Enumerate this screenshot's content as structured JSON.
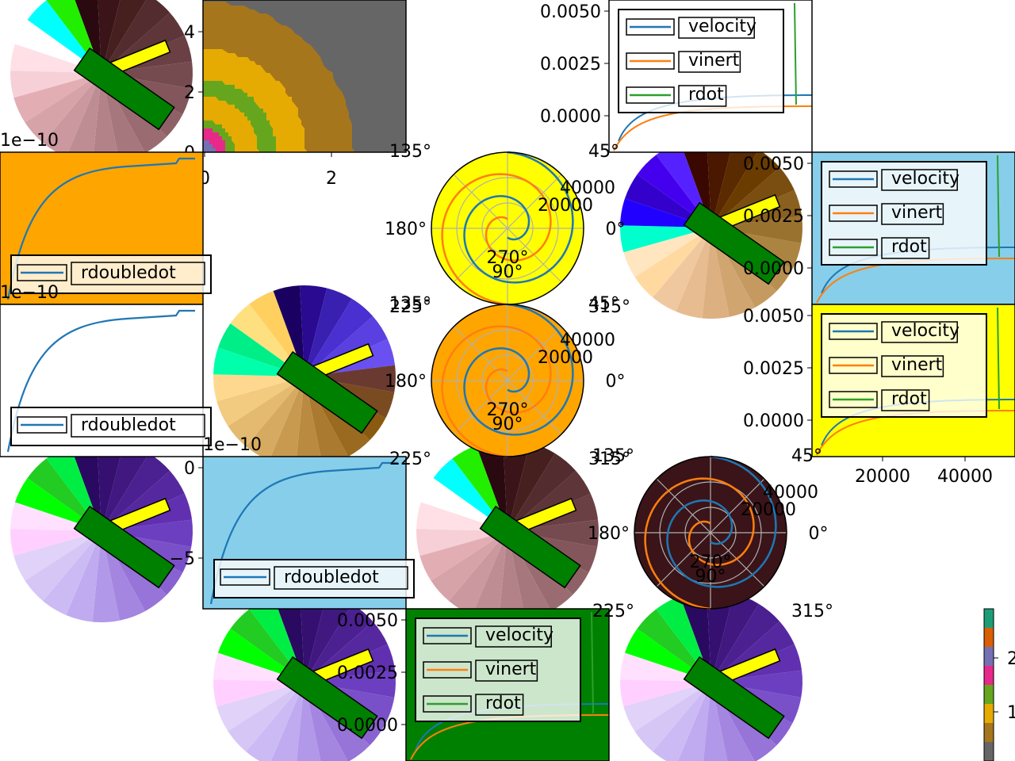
{
  "chart_data": [
    {
      "type": "line",
      "id": "legend-a",
      "series": [
        {
          "name": "velocity",
          "color": "#1f77b4"
        },
        {
          "name": "vinert",
          "color": "#ff7f0e"
        },
        {
          "name": "rdot",
          "color": "#2ca02c"
        }
      ],
      "yticks": [
        "0.0050",
        "0.0025",
        "0.0000"
      ],
      "ylim": [
        0.0,
        0.005
      ],
      "legend_placement": "top",
      "background": "#ffffff"
    },
    {
      "type": "line",
      "id": "legend-b",
      "series": [
        {
          "name": "velocity",
          "color": "#1f77b4"
        },
        {
          "name": "vinert",
          "color": "#ff7f0e"
        },
        {
          "name": "rdot",
          "color": "#2ca02c"
        }
      ],
      "yticks": [
        "0.0050",
        "0.0025",
        "0.0000"
      ],
      "background": "#87ceeb"
    },
    {
      "type": "line",
      "id": "legend-c",
      "series": [
        {
          "name": "velocity",
          "color": "#1f77b4"
        },
        {
          "name": "vinert",
          "color": "#ff7f0e"
        },
        {
          "name": "rdot",
          "color": "#2ca02c"
        }
      ],
      "yticks": [
        "0.0050",
        "0.0025",
        "0.0000"
      ],
      "xticks": [
        "20000",
        "40000"
      ],
      "background": "#ffff00"
    },
    {
      "type": "line",
      "id": "legend-d",
      "series": [
        {
          "name": "velocity",
          "color": "#1f77b4"
        },
        {
          "name": "vinert",
          "color": "#ff7f0e"
        },
        {
          "name": "rdot",
          "color": "#2ca02c"
        }
      ],
      "yticks": [
        "0.0050",
        "0.0025",
        "0.0000"
      ],
      "background": "#008000"
    },
    {
      "type": "line",
      "id": "rdd-a",
      "series": [
        {
          "name": "rdoubledot",
          "color": "#1f77b4"
        }
      ],
      "offset_text": "1e−10",
      "background": "#ffa500"
    },
    {
      "type": "line",
      "id": "rdd-b",
      "series": [
        {
          "name": "rdoubledot",
          "color": "#1f77b4"
        }
      ],
      "offset_text": "1e−10",
      "background": "#ffffff"
    },
    {
      "type": "line",
      "id": "rdd-c",
      "series": [
        {
          "name": "rdoubledot",
          "color": "#1f77b4"
        }
      ],
      "offset_text": "1e−10",
      "yticks": [
        "0",
        "−5"
      ],
      "background": "#87ceeb"
    },
    {
      "type": "line",
      "id": "polar-a",
      "polar": true,
      "angle_ticks": [
        "0°",
        "45°",
        "90°",
        "135°",
        "180°",
        "225°",
        "270°",
        "315°"
      ],
      "radial_ticks": [
        "20000",
        "40000"
      ],
      "background": "#ffff00"
    },
    {
      "type": "line",
      "id": "polar-b",
      "polar": true,
      "angle_ticks": [
        "0°",
        "45°",
        "90°",
        "135°",
        "180°",
        "225°",
        "270°",
        "315°"
      ],
      "radial_ticks": [
        "20000",
        "40000"
      ],
      "background": "#ffa500"
    },
    {
      "type": "line",
      "id": "polar-c",
      "polar": true,
      "angle_ticks": [
        "0°",
        "45°",
        "90°",
        "135°",
        "180°",
        "225°",
        "270°",
        "315°"
      ],
      "radial_ticks": [
        "20000",
        "40000"
      ],
      "background": "#3a1418"
    },
    {
      "type": "heatmap",
      "id": "levels",
      "xticks": [
        "0",
        "2"
      ],
      "yticks": [
        "0",
        "2",
        "4"
      ],
      "colorbar_ticks": [
        "1",
        "2"
      ]
    },
    {
      "type": "pie",
      "id": "pies",
      "palettes": {
        "a": [
          "#2a0a10",
          "#3a1418",
          "#46201f",
          "#522c2e",
          "#5e3538",
          "#6a4044",
          "#764b4f",
          "#82565b",
          "#8e6166",
          "#9a6c72",
          "#a6777d",
          "#b28288",
          "#be8d93",
          "#ca989e",
          "#d6a3a9",
          "#e2aeb4",
          "#f6d0d6",
          "#ffe0e6",
          "#ffffff",
          "#00ffff",
          "#22ee00"
        ],
        "b": [
          "#2a0a60",
          "#351070",
          "#401880",
          "#4b2090",
          "#5628a0",
          "#6130b0",
          "#6c3ec0",
          "#7a50c8",
          "#8862d0",
          "#9674d8",
          "#a486e0",
          "#b298e8",
          "#c0aaf0",
          "#ccbaf4",
          "#d6c6f6",
          "#e0d2f8",
          "#ffd0ff",
          "#ffe0ff",
          "#00ff00",
          "#22cc22",
          "#00ee44"
        ],
        "c": [
          "#3a0800",
          "#4a1800",
          "#5a2a00",
          "#6a3c00",
          "#7a4e10",
          "#8a6020",
          "#9a7230",
          "#aa8440",
          "#b88f50",
          "#c49a60",
          "#d0a570",
          "#dcb080",
          "#e6bc90",
          "#f0c8a0",
          "#ffd9a0",
          "#ffe6c0",
          "#00ffcc",
          "#2200ff",
          "#3300cc",
          "#4400ee",
          "#5522ff"
        ],
        "d": [
          "#1a0060",
          "#2a0a90",
          "#3a20b0",
          "#4a30d0",
          "#5a40e0",
          "#6a50f0",
          "#6a3a30",
          "#7a4a20",
          "#8a5a10",
          "#9a6a20",
          "#aa7a30",
          "#ba8a40",
          "#c89a50",
          "#d6aa60",
          "#e4ba70",
          "#f2ca80",
          "#ffd890",
          "#00ffaa",
          "#00ee88",
          "#ffe080",
          "#ffd060"
        ]
      }
    }
  ]
}
